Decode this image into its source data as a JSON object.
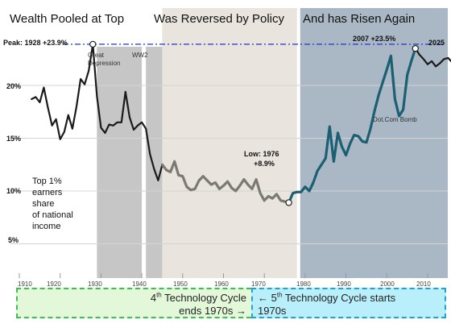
{
  "colors": {
    "background": "#ffffff",
    "period_top_line": "#1a1a1a",
    "period_mid_line": "#7a7a72",
    "period_recent_line": "#1b5f73",
    "peak_line": "#2233cc",
    "shade_great_depression": "#c6c6c6",
    "shade_ww2": "#c6c6c6",
    "shade_reversed": "#e9e4dd",
    "shade_risen": "#a9b8c4",
    "box_left_fill": "#e3f7d9",
    "box_left_border": "#3cbf55",
    "box_right_fill": "#b9eefb",
    "box_right_border": "#1da3d6"
  },
  "chart_data": {
    "type": "line",
    "sections": [
      "Wealth Pooled at Top",
      "Was Reversed by Policy",
      "And has Risen Again"
    ],
    "peak_line_label": "Peak: 1928 +23.9%",
    "y_ticks": [
      "20%",
      "15%",
      "10%",
      "5%"
    ],
    "y_tick_values": [
      20,
      15,
      10,
      5
    ],
    "x_ticks": [
      "1910",
      "1920",
      "1930",
      "1940",
      "1950",
      "1960",
      "1970",
      "1980",
      "1990",
      "2000",
      "2010"
    ],
    "x_tick_values": [
      1910,
      1920,
      1930,
      1940,
      1950,
      1960,
      1970,
      1980,
      1990,
      2000,
      2010
    ],
    "xlim": [
      1908,
      2030
    ],
    "ylim": [
      2,
      25
    ],
    "grid": true,
    "shaded_periods": [
      {
        "label": "Great Depression",
        "start": 1929,
        "end": 1940
      },
      {
        "label": "WW2",
        "start": 1941,
        "end": 1945
      }
    ],
    "period_backgrounds": [
      {
        "start": 1945,
        "end": 1978
      },
      {
        "start": 1978,
        "end": 2030
      }
    ],
    "annotations": {
      "great_depression": "Great Depression",
      "ww2": "WW2",
      "low": [
        "Low: 1976",
        "+8.9%"
      ],
      "peak_2007": "2007 +23.5%",
      "year_2025": "2025",
      "dotcom": "Dot.Com Bomb",
      "side_text": [
        "Top 1%",
        "earners",
        "share",
        "of national",
        "income"
      ]
    },
    "markers": [
      {
        "label": "Peak 1928",
        "x": 1928,
        "y": 23.9
      },
      {
        "label": "Low 1976",
        "x": 1976,
        "y": 8.9
      },
      {
        "label": "Peak 2007",
        "x": 2007,
        "y": 23.5
      }
    ],
    "series": [
      {
        "x": [
          1913,
          1914,
          1915,
          1916,
          1917,
          1918,
          1919,
          1920,
          1921,
          1922,
          1923,
          1924,
          1925,
          1926,
          1927,
          1928,
          1929,
          1930,
          1931,
          1932,
          1933,
          1934,
          1935,
          1936,
          1937,
          1938,
          1939,
          1940,
          1941,
          1942,
          1943,
          1944,
          1945
        ],
        "y": [
          18.7,
          18.9,
          18.4,
          19.8,
          17.9,
          16.2,
          16.8,
          14.9,
          15.6,
          17.2,
          15.9,
          18.0,
          20.6,
          20.1,
          21.4,
          23.9,
          19.0,
          16.0,
          15.5,
          16.3,
          16.2,
          16.5,
          16.5,
          19.4,
          17.0,
          15.8,
          16.2,
          16.5,
          15.9,
          13.5,
          12.1,
          11.0,
          12.5
        ]
      },
      {
        "x": [
          1945,
          1946,
          1947,
          1948,
          1949,
          1950,
          1951,
          1952,
          1953,
          1954,
          1955,
          1956,
          1957,
          1958,
          1959,
          1960,
          1961,
          1962,
          1963,
          1964,
          1965,
          1966,
          1967,
          1968,
          1969,
          1970,
          1971,
          1972,
          1973,
          1974,
          1975,
          1976
        ],
        "y": [
          12.5,
          12.0,
          11.8,
          12.8,
          11.5,
          11.4,
          10.4,
          10.1,
          10.2,
          11.0,
          11.4,
          11.0,
          10.6,
          10.8,
          10.2,
          10.5,
          10.9,
          10.3,
          10.0,
          10.5,
          11.1,
          10.6,
          10.2,
          11.1,
          9.8,
          9.1,
          9.5,
          9.3,
          9.7,
          9.1,
          9.0,
          8.9
        ]
      },
      {
        "x": [
          1976,
          1977,
          1978,
          1979,
          1980,
          1981,
          1982,
          1983,
          1984,
          1985,
          1986,
          1987,
          1988,
          1989,
          1990,
          1991,
          1992,
          1993,
          1994,
          1995,
          1996,
          1997,
          1998,
          1999,
          2000,
          2001,
          2002,
          2003,
          2004,
          2005,
          2006,
          2007
        ],
        "y": [
          8.9,
          9.8,
          9.9,
          9.9,
          10.4,
          10.0,
          10.8,
          11.9,
          12.5,
          13.1,
          16.1,
          12.8,
          15.5,
          14.2,
          13.4,
          14.5,
          15.3,
          15.2,
          14.7,
          14.6,
          15.9,
          17.6,
          19.1,
          20.3,
          21.5,
          22.8,
          18.7,
          17.1,
          17.7,
          21.0,
          22.3,
          23.5
        ]
      },
      {
        "x": [
          2007,
          2008,
          2009,
          2010,
          2011,
          2012,
          2013,
          2014,
          2015,
          2016,
          2017,
          2018,
          2019,
          2020,
          2021,
          2022,
          2023,
          2024,
          2025
        ],
        "y": [
          23.5,
          22.9,
          22.5,
          22.0,
          22.3,
          21.8,
          22.1,
          22.5,
          22.6,
          22.2,
          22.4,
          22.7,
          22.5,
          22.6,
          22.8,
          22.9,
          22.7,
          22.7,
          22.6
        ]
      }
    ]
  },
  "boxes": {
    "left": {
      "line1_pre": "4",
      "line1_sup": "th",
      "line1_post": " Technology Cycle",
      "line2": "ends 1970s →"
    },
    "right": {
      "line1_pre": "← 5",
      "line1_sup": "th",
      "line1_post": " Technology Cycle starts",
      "line2": "1970s"
    }
  }
}
